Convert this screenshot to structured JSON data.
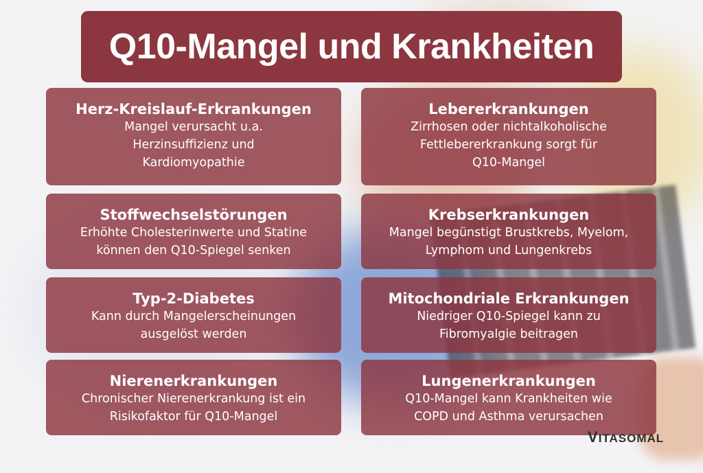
{
  "title": "Q10-Mangel und Krankheiten",
  "cards": [
    {
      "heading": "Herz-Kreislauf-Erkrankungen",
      "text": "Mangel verursacht u.a.\nHerzinsuffizienz und\nKardiomyopathie"
    },
    {
      "heading": "Lebererkrankungen",
      "text": "Zirrhosen oder nichtalkoholische\nFettlebererkrankung sorgt für\nQ10-Mangel"
    },
    {
      "heading": "Stoffwechselstörungen",
      "text": "Erhöhte Cholesterinwerte und Statine\nkönnen den Q10-Spiegel senken"
    },
    {
      "heading": "Krebserkrankungen",
      "text": "Mangel begünstigt Brustkrebs, Myelom,\nLymphom und Lungenkrebs"
    },
    {
      "heading": "Typ-2-Diabetes",
      "text": "Kann durch Mangelerscheinungen\nausgelöst werden"
    },
    {
      "heading": "Mitochondriale Erkrankungen",
      "text": "Niedriger Q10-Spiegel kann zu\nFibromyalgie beitragen"
    },
    {
      "heading": "Nierenerkrankungen",
      "text": "Chronischer Nierenerkrankung ist ein\nRisikofaktor für Q10-Mangel"
    },
    {
      "heading": "Lungenerkrankungen",
      "text": "Q10-Mangel kann Krankheiten wie\nCOPD und Asthma verursachen"
    }
  ],
  "logo": {
    "first": "V",
    "rest": "ITASOMAL"
  },
  "colors": {
    "accent": "#8c3640"
  }
}
